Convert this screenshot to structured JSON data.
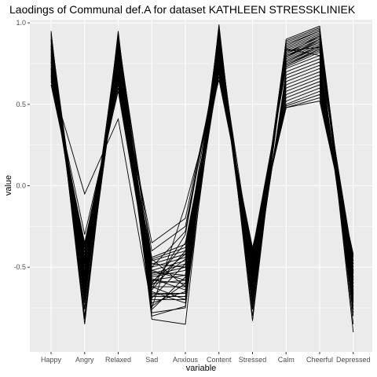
{
  "chart_data": {
    "type": "line",
    "title": "Laodings of Communal def.A for dataset KATHLEEN STRESSKLINIEK",
    "xlabel": "variable",
    "ylabel": "value",
    "categories": [
      "Happy",
      "Angry",
      "Relaxed",
      "Sad",
      "Anxious",
      "Content",
      "Stressed",
      "Calm",
      "Cheerful",
      "Depressed"
    ],
    "ylim": [
      -1.02,
      1.02
    ],
    "yticks": [
      1.0,
      0.5,
      0.0,
      -0.5
    ],
    "ytick_labels": [
      "1.0",
      "0.5",
      "0.0",
      "-0.5"
    ],
    "grid": true,
    "panel_color": "#ebebeb",
    "grid_color": "#ffffff",
    "line_color": "#000000",
    "series": [
      {
        "values": [
          0.95,
          -0.85,
          0.95,
          -0.82,
          -0.85,
          0.99,
          -0.83,
          0.9,
          0.98,
          -0.9
        ]
      },
      {
        "values": [
          0.93,
          -0.8,
          0.9,
          -0.78,
          -0.75,
          0.96,
          -0.8,
          0.88,
          0.96,
          -0.85
        ]
      },
      {
        "values": [
          0.9,
          -0.72,
          0.88,
          -0.7,
          -0.7,
          0.94,
          -0.74,
          0.86,
          0.95,
          -0.8
        ]
      },
      {
        "values": [
          0.88,
          -0.68,
          0.86,
          -0.66,
          -0.66,
          0.92,
          -0.7,
          0.85,
          0.94,
          -0.76
        ]
      },
      {
        "values": [
          0.86,
          -0.62,
          0.85,
          -0.62,
          -0.62,
          0.9,
          -0.66,
          0.84,
          0.93,
          -0.72
        ]
      },
      {
        "values": [
          0.84,
          -0.58,
          0.83,
          -0.6,
          -0.58,
          0.88,
          -0.62,
          0.83,
          0.92,
          -0.68
        ]
      },
      {
        "values": [
          0.82,
          -0.55,
          0.81,
          -0.58,
          -0.55,
          0.86,
          -0.6,
          0.82,
          0.91,
          -0.66
        ]
      },
      {
        "values": [
          0.8,
          -0.52,
          0.79,
          -0.56,
          -0.52,
          0.85,
          -0.58,
          0.81,
          0.9,
          -0.64
        ]
      },
      {
        "values": [
          0.78,
          -0.5,
          0.77,
          -0.55,
          -0.5,
          0.84,
          -0.56,
          0.8,
          0.89,
          -0.62
        ]
      },
      {
        "values": [
          0.76,
          -0.48,
          0.75,
          -0.54,
          -0.48,
          0.83,
          -0.54,
          0.79,
          0.88,
          -0.6
        ]
      },
      {
        "values": [
          0.74,
          -0.46,
          0.73,
          -0.52,
          -0.46,
          0.82,
          -0.52,
          0.78,
          0.87,
          -0.58
        ]
      },
      {
        "values": [
          0.72,
          -0.44,
          0.71,
          -0.5,
          -0.44,
          0.8,
          -0.5,
          0.77,
          0.86,
          -0.56
        ]
      },
      {
        "values": [
          0.7,
          -0.42,
          0.69,
          -0.48,
          -0.42,
          0.78,
          -0.48,
          0.76,
          0.85,
          -0.54
        ]
      },
      {
        "values": [
          0.68,
          -0.4,
          0.67,
          -0.46,
          -0.4,
          0.76,
          -0.46,
          0.75,
          0.84,
          -0.52
        ]
      },
      {
        "values": [
          0.66,
          -0.38,
          0.65,
          -0.45,
          -0.38,
          0.74,
          -0.44,
          0.74,
          0.83,
          -0.5
        ]
      },
      {
        "values": [
          0.64,
          -0.36,
          0.63,
          -0.44,
          -0.36,
          0.72,
          -0.42,
          0.73,
          0.82,
          -0.48
        ]
      },
      {
        "values": [
          0.62,
          -0.35,
          0.62,
          -0.6,
          -0.35,
          0.7,
          -0.4,
          0.72,
          0.8,
          -0.46
        ]
      },
      {
        "values": [
          0.92,
          -0.6,
          0.8,
          -0.72,
          -0.65,
          0.91,
          -0.7,
          0.7,
          0.78,
          -0.74
        ]
      },
      {
        "values": [
          0.89,
          -0.65,
          0.84,
          -0.65,
          -0.72,
          0.89,
          -0.68,
          0.68,
          0.76,
          -0.7
        ]
      },
      {
        "values": [
          0.87,
          -0.7,
          0.82,
          -0.74,
          -0.6,
          0.87,
          -0.64,
          0.66,
          0.74,
          -0.66
        ]
      },
      {
        "values": [
          0.85,
          -0.75,
          0.78,
          -0.68,
          -0.68,
          0.85,
          -0.58,
          0.64,
          0.72,
          -0.62
        ]
      },
      {
        "values": [
          0.83,
          -0.66,
          0.76,
          -0.63,
          -0.3,
          0.83,
          -0.55,
          0.62,
          0.7,
          -0.58
        ]
      },
      {
        "values": [
          0.81,
          -0.56,
          0.74,
          -0.5,
          -0.28,
          0.81,
          -0.53,
          0.6,
          0.68,
          -0.56
        ]
      },
      {
        "values": [
          0.79,
          -0.54,
          0.72,
          -0.4,
          -0.25,
          0.79,
          -0.51,
          0.58,
          0.66,
          -0.54
        ]
      },
      {
        "values": [
          0.77,
          -0.5,
          0.7,
          -0.35,
          -0.2,
          0.77,
          -0.49,
          0.56,
          0.64,
          -0.52
        ]
      },
      {
        "values": [
          0.75,
          -0.47,
          0.68,
          -0.48,
          -0.5,
          0.75,
          -0.47,
          0.54,
          0.62,
          -0.5
        ]
      },
      {
        "values": [
          0.73,
          -0.44,
          0.66,
          -0.53,
          -0.55,
          0.73,
          -0.45,
          0.52,
          0.6,
          -0.48
        ]
      },
      {
        "values": [
          0.71,
          -0.4,
          0.64,
          -0.58,
          -0.6,
          0.71,
          -0.43,
          0.5,
          0.58,
          -0.46
        ]
      },
      {
        "values": [
          0.69,
          -0.37,
          0.6,
          -0.61,
          -0.45,
          0.69,
          -0.41,
          0.49,
          0.56,
          -0.44
        ]
      },
      {
        "values": [
          0.67,
          -0.3,
          0.58,
          -0.64,
          -0.4,
          0.67,
          -0.39,
          0.48,
          0.54,
          -0.43
        ]
      },
      {
        "values": [
          0.65,
          -0.05,
          0.41,
          -0.75,
          -0.12,
          0.65,
          -0.38,
          0.48,
          0.52,
          -0.42
        ]
      },
      {
        "values": [
          0.8,
          -0.6,
          0.9,
          -0.45,
          -0.62,
          0.93,
          -0.6,
          0.87,
          0.95,
          -0.63
        ]
      },
      {
        "values": [
          0.84,
          -0.64,
          0.92,
          -0.52,
          -0.58,
          0.95,
          -0.65,
          0.89,
          0.97,
          -0.67
        ]
      },
      {
        "values": [
          0.91,
          -0.76,
          0.87,
          -0.57,
          -0.64,
          0.84,
          -0.72,
          0.84,
          0.8,
          -0.71
        ]
      },
      {
        "values": [
          0.94,
          -0.82,
          0.93,
          -0.62,
          -0.7,
          0.97,
          -0.76,
          0.83,
          0.85,
          -0.78
        ]
      },
      {
        "values": [
          0.72,
          -0.58,
          0.8,
          -0.8,
          -0.74,
          0.8,
          -0.62,
          0.8,
          0.88,
          -0.6
        ]
      },
      {
        "values": [
          0.76,
          -0.62,
          0.84,
          -0.76,
          -0.56,
          0.86,
          -0.57,
          0.79,
          0.9,
          -0.65
        ]
      },
      {
        "values": [
          0.68,
          -0.45,
          0.7,
          -0.69,
          -0.48,
          0.75,
          -0.52,
          0.76,
          0.86,
          -0.57
        ]
      },
      {
        "values": [
          0.86,
          -0.53,
          0.75,
          -0.59,
          -0.42,
          0.88,
          -0.48,
          0.74,
          0.84,
          -0.53
        ]
      },
      {
        "values": [
          0.9,
          -0.69,
          0.89,
          -0.67,
          -0.66,
          0.9,
          -0.69,
          0.81,
          0.92,
          -0.69
        ]
      }
    ]
  }
}
